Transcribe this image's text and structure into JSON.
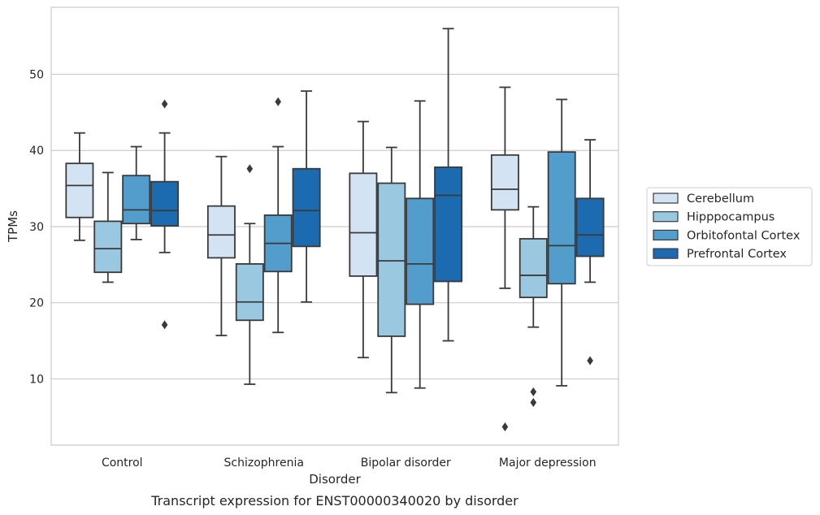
{
  "chart_data": {
    "type": "box",
    "xlabel": "Disorder",
    "ylabel": "TPMs",
    "caption": "Transcript expression for ENST00000340020 by disorder",
    "ylim": [
      1.3,
      58.8
    ],
    "yticks": [
      10,
      20,
      30,
      40,
      50
    ],
    "grid": "horizontal",
    "legend_position": "center-right",
    "categories": [
      "Control",
      "Schizophrenia",
      "Bipolar disorder",
      "Major depression"
    ],
    "series": [
      {
        "name": "Cerebellum",
        "color": "#d3e3f3",
        "boxes": [
          {
            "whisker_low": 28.2,
            "q1": 31.2,
            "median": 35.4,
            "q3": 38.3,
            "whisker_high": 42.3,
            "outliers": []
          },
          {
            "whisker_low": 15.7,
            "q1": 25.9,
            "median": 28.9,
            "q3": 32.7,
            "whisker_high": 39.2,
            "outliers": []
          },
          {
            "whisker_low": 12.8,
            "q1": 23.5,
            "median": 29.2,
            "q3": 37.0,
            "whisker_high": 43.8,
            "outliers": []
          },
          {
            "whisker_low": 21.9,
            "q1": 32.2,
            "median": 34.9,
            "q3": 39.4,
            "whisker_high": 48.3,
            "outliers": [
              3.7
            ]
          }
        ]
      },
      {
        "name": "Hipppocampus",
        "color": "#9ac8e0",
        "boxes": [
          {
            "whisker_low": 22.7,
            "q1": 24.0,
            "median": 27.1,
            "q3": 30.7,
            "whisker_high": 37.1,
            "outliers": []
          },
          {
            "whisker_low": 9.3,
            "q1": 17.7,
            "median": 20.1,
            "q3": 25.1,
            "whisker_high": 30.4,
            "outliers": [
              37.6
            ]
          },
          {
            "whisker_low": 8.2,
            "q1": 15.6,
            "median": 25.5,
            "q3": 35.7,
            "whisker_high": 40.4,
            "outliers": []
          },
          {
            "whisker_low": 16.8,
            "q1": 20.7,
            "median": 23.6,
            "q3": 28.4,
            "whisker_high": 32.6,
            "outliers": [
              8.3,
              6.9
            ]
          }
        ]
      },
      {
        "name": "Orbitofontal Cortex",
        "color": "#529dcc",
        "boxes": [
          {
            "whisker_low": 28.3,
            "q1": 30.4,
            "median": 32.2,
            "q3": 36.7,
            "whisker_high": 40.5,
            "outliers": []
          },
          {
            "whisker_low": 16.1,
            "q1": 24.1,
            "median": 27.8,
            "q3": 31.5,
            "whisker_high": 40.5,
            "outliers": [
              46.4
            ]
          },
          {
            "whisker_low": 8.8,
            "q1": 19.8,
            "median": 25.1,
            "q3": 33.7,
            "whisker_high": 46.5,
            "outliers": []
          },
          {
            "whisker_low": 9.1,
            "q1": 22.5,
            "median": 27.5,
            "q3": 39.8,
            "whisker_high": 46.7,
            "outliers": []
          }
        ]
      },
      {
        "name": "Prefrontal Cortex",
        "color": "#1c6aaf",
        "boxes": [
          {
            "whisker_low": 26.6,
            "q1": 30.1,
            "median": 32.1,
            "q3": 35.9,
            "whisker_high": 42.3,
            "outliers": [
              46.1,
              17.1
            ]
          },
          {
            "whisker_low": 20.1,
            "q1": 27.4,
            "median": 32.1,
            "q3": 37.6,
            "whisker_high": 47.8,
            "outliers": []
          },
          {
            "whisker_low": 15.0,
            "q1": 22.8,
            "median": 34.1,
            "q3": 37.8,
            "whisker_high": 56.0,
            "outliers": []
          },
          {
            "whisker_low": 22.7,
            "q1": 26.1,
            "median": 28.9,
            "q3": 33.7,
            "whisker_high": 41.4,
            "outliers": [
              12.4
            ]
          }
        ]
      }
    ]
  }
}
